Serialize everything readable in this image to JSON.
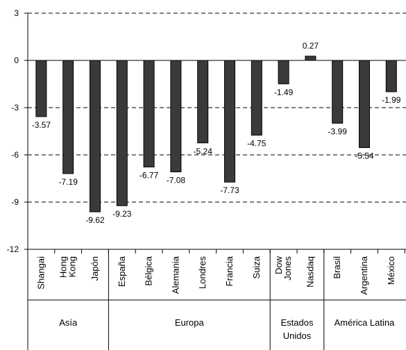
{
  "chart_data": {
    "type": "bar",
    "title": "",
    "xlabel": "",
    "ylabel": "",
    "ylim": [
      -12,
      3
    ],
    "yticks": [
      3,
      0,
      -3,
      -6,
      -9,
      -12
    ],
    "grid": "horizontal dashed",
    "legend": "none",
    "bar_color": "#3a3a3a",
    "categories": [
      "Shangai",
      "Hong Kong",
      "Japón",
      "España",
      "Bélgica",
      "Alemania",
      "Londres",
      "Francia",
      "Suiza",
      "Dow Jones",
      "Nasdaq",
      "Brasil",
      "Argentina",
      "México"
    ],
    "values": [
      -3.57,
      -7.19,
      -9.62,
      -9.23,
      -6.77,
      -7.08,
      -5.24,
      -7.73,
      -4.75,
      -1.49,
      0.27,
      -3.99,
      -5.54,
      -1.99
    ],
    "data_labels": [
      "-3.57",
      "-7.19",
      "-9.62",
      "-9.23",
      "-6.77",
      "-7.08",
      "-5.24",
      "-7.73",
      "-4.75",
      "-1.49",
      "0.27",
      "-3.99",
      "-5.54",
      "-1.99"
    ],
    "groups": [
      {
        "name": "Asía",
        "count": 3
      },
      {
        "name": "Europa",
        "count": 6
      },
      {
        "name": "Estados Unidos",
        "count": 2
      },
      {
        "name": "América Latina",
        "count": 3
      }
    ]
  }
}
